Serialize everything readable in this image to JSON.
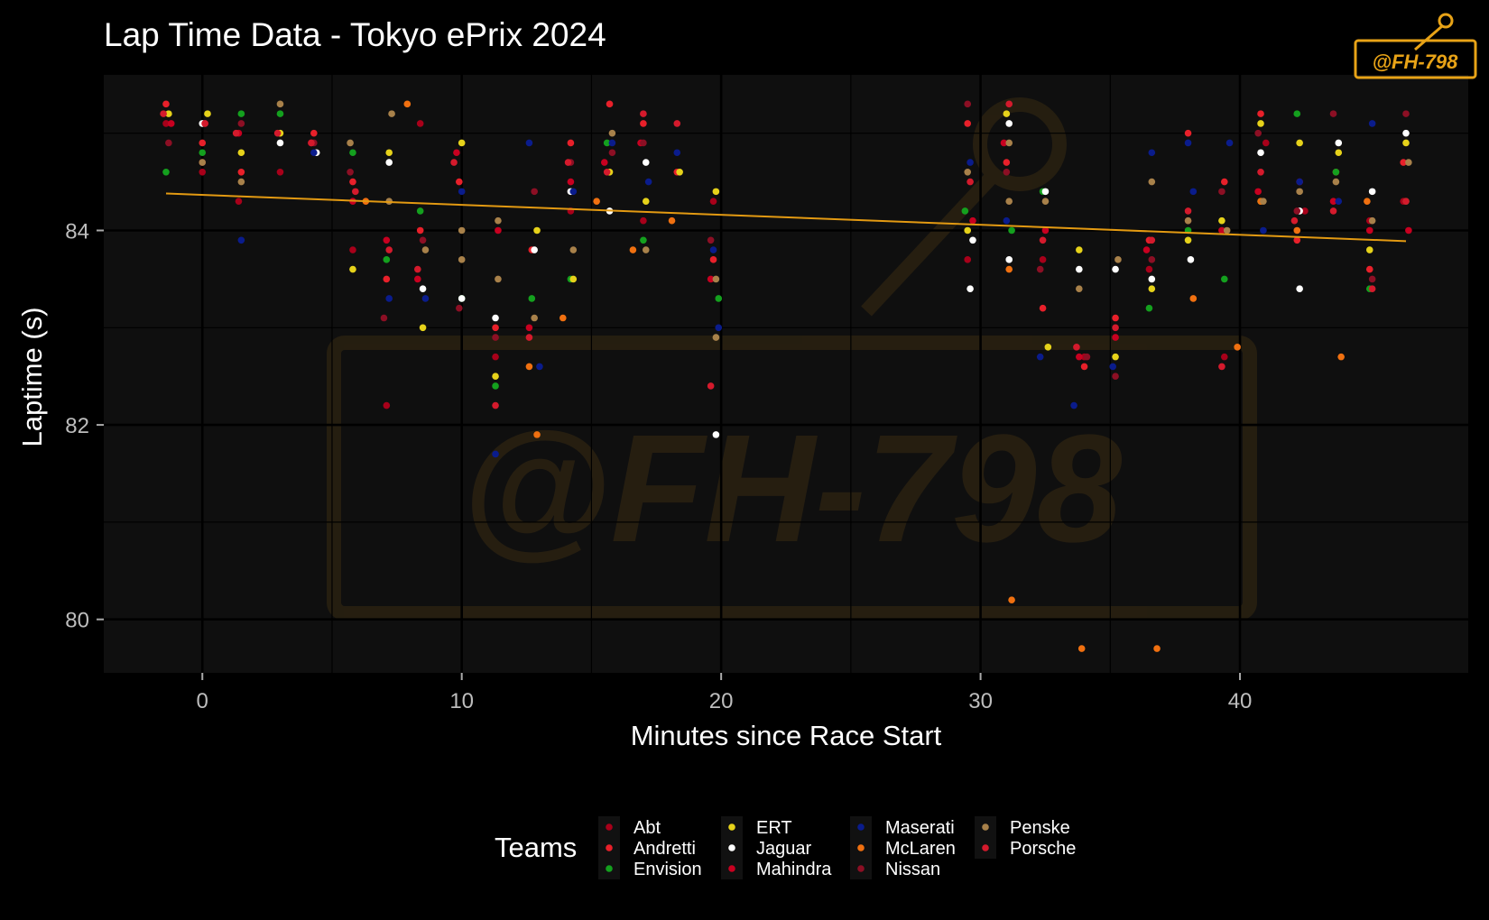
{
  "chart_data": {
    "type": "scatter",
    "title": "Lap Time Data - Tokyo ePrix 2024",
    "xlabel": "Minutes since Race Start",
    "ylabel": "Laptime (s)",
    "xlim": [
      -3.8,
      48.8
    ],
    "ylim": [
      79.45,
      85.6
    ],
    "x_ticks": [
      0,
      10,
      20,
      30,
      40
    ],
    "y_ticks": [
      80,
      82,
      84
    ],
    "grid": true,
    "legend": {
      "title": "Teams",
      "placement": "bottom"
    },
    "watermark": "@FH-798",
    "trend": {
      "x1": -1.4,
      "y1": 84.38,
      "x2": 46.4,
      "y2": 83.89,
      "color": "#e39a12"
    },
    "series": [
      {
        "name": "Abt",
        "color": "#a8001a",
        "points": [
          [
            -1.4,
            85.1
          ],
          [
            0,
            84.6
          ],
          [
            1.4,
            84.3
          ],
          [
            3,
            84.6
          ],
          [
            5.8,
            83.8
          ],
          [
            7.1,
            82.2
          ],
          [
            8.4,
            85.1
          ],
          [
            11.3,
            82.7
          ],
          [
            14.2,
            84.2
          ],
          [
            17,
            84.1
          ],
          [
            19.7,
            84.3
          ],
          [
            29.5,
            83.7
          ],
          [
            32.4,
            83.7
          ],
          [
            34,
            82.7
          ],
          [
            36.5,
            83.6
          ],
          [
            39.4,
            82.7
          ],
          [
            41,
            84.9
          ],
          [
            42.5,
            84.2
          ],
          [
            45,
            84.1
          ],
          [
            46.3,
            84.3
          ]
        ]
      },
      {
        "name": "Andretti",
        "color": "#e8202a",
        "points": [
          [
            -1.4,
            85.3
          ],
          [
            0,
            84.9
          ],
          [
            1.5,
            84.6
          ],
          [
            4.3,
            85
          ],
          [
            5.8,
            84.5
          ],
          [
            7.1,
            83.5
          ],
          [
            8.4,
            84
          ],
          [
            9.9,
            84.5
          ],
          [
            11.3,
            83
          ],
          [
            12.7,
            83.8
          ],
          [
            14.2,
            84.9
          ],
          [
            15.7,
            85.3
          ],
          [
            17,
            85.1
          ],
          [
            18.3,
            84.6
          ],
          [
            19.7,
            83.7
          ],
          [
            29.5,
            85.1
          ],
          [
            31,
            84.7
          ],
          [
            32.4,
            83.2
          ],
          [
            34,
            82.6
          ],
          [
            35.2,
            83.1
          ],
          [
            36.5,
            83.9
          ],
          [
            38,
            85
          ],
          [
            39.4,
            84.5
          ],
          [
            40.8,
            85.2
          ],
          [
            42.2,
            83.9
          ],
          [
            43.7,
            84.6
          ],
          [
            45,
            83.6
          ],
          [
            46.3,
            84.7
          ]
        ]
      },
      {
        "name": "Envision",
        "color": "#14a01e",
        "points": [
          [
            -1.4,
            84.6
          ],
          [
            0,
            84.8
          ],
          [
            1.5,
            85.2
          ],
          [
            3,
            85.2
          ],
          [
            5.8,
            84.8
          ],
          [
            7.1,
            83.7
          ],
          [
            8.4,
            84.2
          ],
          [
            10,
            83.3
          ],
          [
            11.3,
            82.4
          ],
          [
            12.7,
            83.3
          ],
          [
            14.2,
            83.5
          ],
          [
            15.6,
            84.9
          ],
          [
            17,
            83.9
          ],
          [
            19.9,
            83.3
          ],
          [
            29.4,
            84.2
          ],
          [
            31.2,
            84
          ],
          [
            32.4,
            84.4
          ],
          [
            36.5,
            83.2
          ],
          [
            38,
            84
          ],
          [
            39.4,
            83.5
          ],
          [
            40.8,
            84.3
          ],
          [
            42.2,
            85.2
          ],
          [
            43.7,
            84.6
          ],
          [
            45,
            83.4
          ],
          [
            46.4,
            84.3
          ]
        ]
      },
      {
        "name": "ERT",
        "color": "#e6d21a",
        "points": [
          [
            -1.3,
            85.2
          ],
          [
            0.2,
            85.2
          ],
          [
            1.5,
            84.8
          ],
          [
            3,
            85
          ],
          [
            5.8,
            83.6
          ],
          [
            7.2,
            84.8
          ],
          [
            8.5,
            83
          ],
          [
            10,
            84.9
          ],
          [
            11.3,
            82.5
          ],
          [
            12.9,
            84
          ],
          [
            14.3,
            83.5
          ],
          [
            15.7,
            84.6
          ],
          [
            17.1,
            84.3
          ],
          [
            18.4,
            84.6
          ],
          [
            19.8,
            84.4
          ],
          [
            29.5,
            84
          ],
          [
            31,
            85.2
          ],
          [
            32.6,
            82.8
          ],
          [
            33.8,
            83.8
          ],
          [
            35.2,
            82.7
          ],
          [
            36.6,
            83.4
          ],
          [
            38,
            83.9
          ],
          [
            39.3,
            84.1
          ],
          [
            40.8,
            85.1
          ],
          [
            42.3,
            84.9
          ],
          [
            43.8,
            84.8
          ],
          [
            45,
            83.8
          ],
          [
            46.4,
            84.9
          ]
        ]
      },
      {
        "name": "Jaguar",
        "color": "#ffffff",
        "points": [
          [
            0,
            85.1
          ],
          [
            3,
            84.9
          ],
          [
            4.4,
            84.8
          ],
          [
            7.2,
            84.7
          ],
          [
            8.5,
            83.4
          ],
          [
            10,
            83.3
          ],
          [
            11.3,
            83.1
          ],
          [
            12.8,
            83.8
          ],
          [
            14.2,
            84.4
          ],
          [
            15.7,
            84.2
          ],
          [
            17.1,
            84.7
          ],
          [
            19.8,
            81.9
          ],
          [
            29.6,
            83.4
          ],
          [
            29.7,
            83.9
          ],
          [
            31.1,
            85.1
          ],
          [
            31.1,
            83.7
          ],
          [
            32.5,
            84.4
          ],
          [
            33.8,
            83.6
          ],
          [
            35.2,
            83.6
          ],
          [
            36.6,
            83.5
          ],
          [
            38.1,
            83.7
          ],
          [
            40.8,
            84.8
          ],
          [
            42.3,
            83.4
          ],
          [
            42.3,
            84.2
          ],
          [
            43.8,
            84.9
          ],
          [
            45.1,
            84.4
          ],
          [
            46.4,
            85
          ]
        ]
      },
      {
        "name": "Mahindra",
        "color": "#c80020",
        "points": [
          [
            -1.2,
            85.1
          ],
          [
            0.1,
            85.1
          ],
          [
            1.4,
            85
          ],
          [
            4.2,
            84.9
          ],
          [
            5.8,
            84.3
          ],
          [
            7.1,
            83.9
          ],
          [
            8.3,
            83.5
          ],
          [
            9.8,
            84.8
          ],
          [
            11.4,
            84
          ],
          [
            12.6,
            83
          ],
          [
            14.2,
            84.5
          ],
          [
            15.5,
            84.7
          ],
          [
            16.9,
            84.9
          ],
          [
            19.6,
            83.5
          ],
          [
            29.7,
            84.1
          ],
          [
            30.9,
            84.9
          ],
          [
            32.5,
            84
          ],
          [
            33.8,
            82.7
          ],
          [
            35.2,
            82.9
          ],
          [
            36.4,
            83.8
          ],
          [
            39.3,
            84
          ],
          [
            40.7,
            84.4
          ],
          [
            42.3,
            84.5
          ],
          [
            43.6,
            84.3
          ],
          [
            45,
            84
          ],
          [
            46.5,
            84
          ]
        ]
      },
      {
        "name": "Maserati",
        "color": "#0a1c8c",
        "points": [
          [
            1.5,
            83.9
          ],
          [
            4.3,
            84.8
          ],
          [
            7.2,
            83.3
          ],
          [
            8.6,
            83.3
          ],
          [
            10,
            84.4
          ],
          [
            11.3,
            81.7
          ],
          [
            12.6,
            84.9
          ],
          [
            13,
            82.6
          ],
          [
            14.3,
            84.4
          ],
          [
            15.8,
            84.9
          ],
          [
            17.2,
            84.5
          ],
          [
            18.3,
            84.8
          ],
          [
            19.7,
            83.8
          ],
          [
            19.9,
            83
          ],
          [
            29.6,
            84.7
          ],
          [
            31,
            84.1
          ],
          [
            32.3,
            82.7
          ],
          [
            33.6,
            82.2
          ],
          [
            35.1,
            82.6
          ],
          [
            36.6,
            84.8
          ],
          [
            38,
            84.9
          ],
          [
            38.2,
            84.4
          ],
          [
            39.6,
            84.9
          ],
          [
            40.9,
            84
          ],
          [
            42.3,
            84.5
          ],
          [
            43.8,
            84.3
          ],
          [
            45.1,
            85.1
          ]
        ]
      },
      {
        "name": "McLaren",
        "color": "#f07010",
        "points": [
          [
            6.3,
            84.3
          ],
          [
            7.9,
            85.3
          ],
          [
            12.6,
            82.6
          ],
          [
            12.9,
            81.9
          ],
          [
            13.9,
            83.1
          ],
          [
            15.2,
            84.3
          ],
          [
            16.6,
            83.8
          ],
          [
            18.1,
            84.1
          ],
          [
            31.1,
            83.6
          ],
          [
            31.2,
            80.2
          ],
          [
            33.9,
            79.7
          ],
          [
            36.8,
            79.7
          ],
          [
            38.2,
            83.3
          ],
          [
            39.9,
            82.8
          ],
          [
            40.8,
            84.3
          ],
          [
            42.2,
            84
          ],
          [
            43.9,
            82.7
          ],
          [
            44.9,
            84.3
          ]
        ]
      },
      {
        "name": "Nissan",
        "color": "#8c0f24",
        "points": [
          [
            -1.3,
            84.9
          ],
          [
            0,
            84.7
          ],
          [
            1.5,
            85.1
          ],
          [
            4.3,
            84.9
          ],
          [
            5.7,
            84.6
          ],
          [
            7,
            83.1
          ],
          [
            8.5,
            83.9
          ],
          [
            9.9,
            83.2
          ],
          [
            11.3,
            82.9
          ],
          [
            12.8,
            84.4
          ],
          [
            14.2,
            84.7
          ],
          [
            15.8,
            84.8
          ],
          [
            17,
            84.9
          ],
          [
            19.6,
            83.9
          ],
          [
            29.5,
            85.3
          ],
          [
            31,
            84.6
          ],
          [
            32.3,
            83.6
          ],
          [
            34.1,
            82.7
          ],
          [
            35.2,
            82.5
          ],
          [
            36.6,
            83.7
          ],
          [
            38,
            84.1
          ],
          [
            39.3,
            84.4
          ],
          [
            40.7,
            85
          ],
          [
            42.2,
            84.2
          ],
          [
            43.6,
            85.2
          ],
          [
            45.1,
            83.5
          ],
          [
            46.4,
            85.2
          ]
        ]
      },
      {
        "name": "Penske",
        "color": "#a8814a",
        "points": [
          [
            0,
            84.7
          ],
          [
            1.5,
            84.5
          ],
          [
            3,
            85.3
          ],
          [
            5.7,
            84.9
          ],
          [
            7.2,
            84.3
          ],
          [
            7.3,
            85.2
          ],
          [
            8.6,
            83.8
          ],
          [
            10,
            84
          ],
          [
            10,
            83.7
          ],
          [
            11.4,
            84.1
          ],
          [
            11.4,
            83.5
          ],
          [
            12.8,
            83.1
          ],
          [
            14.3,
            83.8
          ],
          [
            15.8,
            85
          ],
          [
            17.1,
            83.8
          ],
          [
            19.8,
            83.5
          ],
          [
            19.8,
            82.9
          ],
          [
            29.5,
            84.6
          ],
          [
            31.1,
            84.9
          ],
          [
            31.1,
            84.3
          ],
          [
            32.5,
            84.3
          ],
          [
            33.8,
            83.4
          ],
          [
            35.3,
            83.7
          ],
          [
            36.6,
            84.5
          ],
          [
            38,
            84.1
          ],
          [
            39.5,
            84
          ],
          [
            40.9,
            84.3
          ],
          [
            42.3,
            84.4
          ],
          [
            43.7,
            84.5
          ],
          [
            45.1,
            84.1
          ],
          [
            46.5,
            84.7
          ]
        ]
      },
      {
        "name": "Porsche",
        "color": "#d41a2c",
        "points": [
          [
            -1.5,
            85.2
          ],
          [
            0.1,
            85.1
          ],
          [
            1.3,
            85
          ],
          [
            2.9,
            85
          ],
          [
            4.2,
            84.9
          ],
          [
            5.9,
            84.4
          ],
          [
            7.2,
            83.8
          ],
          [
            8.3,
            83.6
          ],
          [
            9.7,
            84.7
          ],
          [
            11.3,
            82.2
          ],
          [
            12.6,
            82.9
          ],
          [
            14.1,
            84.7
          ],
          [
            15.6,
            84.6
          ],
          [
            17,
            85.2
          ],
          [
            18.3,
            85.1
          ],
          [
            19.6,
            82.4
          ],
          [
            29.6,
            84.5
          ],
          [
            31.1,
            85.3
          ],
          [
            32.4,
            83.9
          ],
          [
            33.7,
            82.8
          ],
          [
            35.2,
            83
          ],
          [
            36.6,
            83.9
          ],
          [
            38,
            84.2
          ],
          [
            39.3,
            82.6
          ],
          [
            40.8,
            84.6
          ],
          [
            42.1,
            84.1
          ],
          [
            43.6,
            84.2
          ],
          [
            45.1,
            83.4
          ],
          [
            46.4,
            84.3
          ]
        ]
      }
    ]
  }
}
